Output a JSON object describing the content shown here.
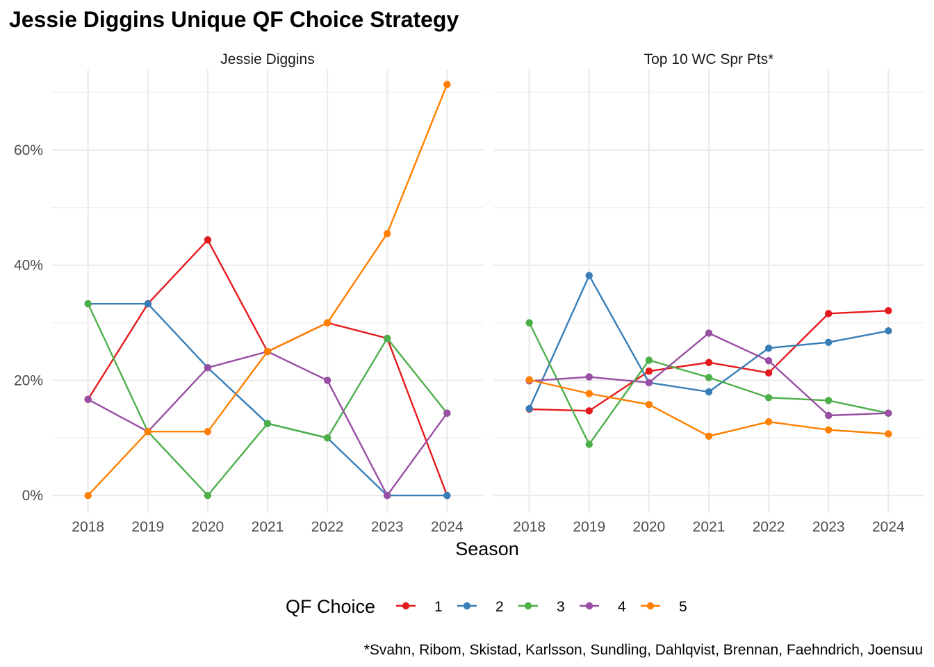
{
  "title": "Jessie Diggins Unique QF Choice Strategy",
  "caption": "*Svahn, Ribom, Skistad, Karlsson, Sundling, Dahlqvist, Brennan, Faehndrich, Joensuu",
  "legend": {
    "title": "QF Choice",
    "placement": "bottom",
    "items": [
      {
        "label": "1",
        "color": "#E41A1C"
      },
      {
        "label": "2",
        "color": "#377EB8"
      },
      {
        "label": "3",
        "color": "#4DAF4A"
      },
      {
        "label": "4",
        "color": "#984EA3"
      },
      {
        "label": "5",
        "color": "#FF7F00"
      }
    ]
  },
  "chart_data": {
    "type": "line",
    "title": "Jessie Diggins Unique QF Choice Strategy",
    "xlabel": "Season",
    "ylabel": "",
    "x": [
      "2018",
      "2019",
      "2020",
      "2021",
      "2022",
      "2023",
      "2024"
    ],
    "y_ticks": [
      "0%",
      "20%",
      "40%",
      "60%"
    ],
    "y_tick_values": [
      0,
      20,
      40,
      60
    ],
    "ylim": [
      -3,
      74
    ],
    "grid": true,
    "facets": [
      {
        "strip": "Jessie Diggins",
        "series": [
          {
            "name": "1",
            "color": "#E41A1C",
            "values": [
              16.7,
              33.3,
              44.4,
              25.0,
              30.0,
              27.3,
              0.0
            ]
          },
          {
            "name": "2",
            "color": "#377EB8",
            "values": [
              33.3,
              33.3,
              22.2,
              12.5,
              10.0,
              0.0,
              0.0
            ]
          },
          {
            "name": "3",
            "color": "#4DAF4A",
            "values": [
              33.3,
              11.1,
              0.0,
              12.5,
              10.0,
              27.3,
              14.3
            ]
          },
          {
            "name": "4",
            "color": "#984EA3",
            "values": [
              16.7,
              11.1,
              22.2,
              25.0,
              20.0,
              0.0,
              14.3
            ]
          },
          {
            "name": "5",
            "color": "#FF7F00",
            "values": [
              0.0,
              11.1,
              11.1,
              25.0,
              30.0,
              45.5,
              71.4
            ]
          }
        ]
      },
      {
        "strip": "Top 10 WC Spr Pts*",
        "series": [
          {
            "name": "1",
            "color": "#E41A1C",
            "values": [
              15.0,
              14.7,
              21.6,
              23.1,
              21.3,
              31.6,
              32.1
            ]
          },
          {
            "name": "2",
            "color": "#377EB8",
            "values": [
              15.1,
              38.2,
              19.6,
              18.0,
              25.6,
              26.6,
              28.6
            ]
          },
          {
            "name": "3",
            "color": "#4DAF4A",
            "values": [
              30.0,
              8.9,
              23.5,
              20.5,
              17.0,
              16.5,
              14.3
            ]
          },
          {
            "name": "4",
            "color": "#984EA3",
            "values": [
              19.9,
              20.6,
              19.6,
              28.2,
              23.4,
              13.9,
              14.3
            ]
          },
          {
            "name": "5",
            "color": "#FF7F00",
            "values": [
              20.1,
              17.7,
              15.8,
              10.3,
              12.8,
              11.4,
              10.7
            ]
          }
        ]
      }
    ]
  }
}
